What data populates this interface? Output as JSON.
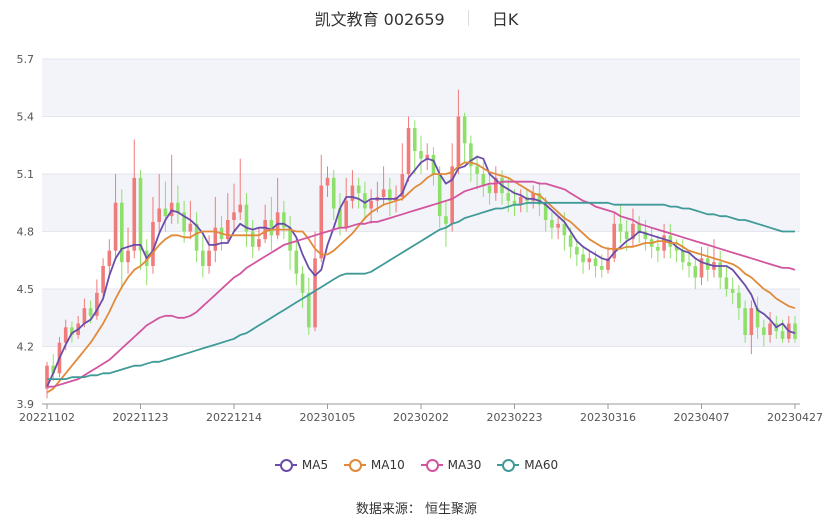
{
  "header": {
    "title": "凯文教育 002659",
    "period": "日K"
  },
  "source": "数据来源： 恒生聚源",
  "colors": {
    "up": "#f07b7b",
    "down": "#8fe06a",
    "ma5": "#6a4caa",
    "ma10": "#e08a3a",
    "ma30": "#d2559f",
    "ma60": "#3f9a98",
    "band": "#f3f4f9",
    "grid": "#e6e6ee",
    "axis": "#999999"
  },
  "chart_data": {
    "type": "candlestick",
    "ylim": [
      3.9,
      5.7
    ],
    "y_ticks": [
      "3.9",
      "4.2",
      "4.5",
      "4.8",
      "5.1",
      "5.4",
      "5.7"
    ],
    "x_tick_labels": [
      "20221102",
      "20221123",
      "20221214",
      "20230105",
      "20230202",
      "20230223",
      "20230316",
      "20230407",
      "20230427"
    ],
    "x_tick_index": [
      0,
      15,
      30,
      45,
      60,
      75,
      90,
      105,
      120
    ],
    "x": [
      0,
      1,
      2,
      3,
      4,
      5,
      6,
      7,
      8,
      9,
      10,
      11,
      12,
      13,
      14,
      15,
      16,
      17,
      18,
      19,
      20,
      21,
      22,
      23,
      24,
      25,
      26,
      27,
      28,
      29,
      30,
      31,
      32,
      33,
      34,
      35,
      36,
      37,
      38,
      39,
      40,
      41,
      42,
      43,
      44,
      45,
      46,
      47,
      48,
      49,
      50,
      51,
      52,
      53,
      54,
      55,
      56,
      57,
      58,
      59,
      60,
      61,
      62,
      63,
      64,
      65,
      66,
      67,
      68,
      69,
      70,
      71,
      72,
      73,
      74,
      75,
      76,
      77,
      78,
      79,
      80,
      81,
      82,
      83,
      84,
      85,
      86,
      87,
      88,
      89,
      90,
      91,
      92,
      93,
      94,
      95,
      96,
      97,
      98,
      99,
      100,
      101,
      102,
      103,
      104,
      105,
      106,
      107,
      108,
      109,
      110,
      111,
      112,
      113,
      114,
      115,
      116,
      117,
      118,
      119,
      120
    ],
    "candles": [
      [
        3.98,
        4.1,
        3.93,
        4.12
      ],
      [
        4.1,
        4.06,
        4.02,
        4.16
      ],
      [
        4.06,
        4.22,
        4.04,
        4.25
      ],
      [
        4.22,
        4.3,
        4.18,
        4.34
      ],
      [
        4.3,
        4.26,
        4.22,
        4.33
      ],
      [
        4.26,
        4.32,
        4.24,
        4.36
      ],
      [
        4.32,
        4.4,
        4.3,
        4.45
      ],
      [
        4.4,
        4.36,
        4.32,
        4.44
      ],
      [
        4.36,
        4.48,
        4.34,
        4.55
      ],
      [
        4.48,
        4.62,
        4.44,
        4.66
      ],
      [
        4.62,
        4.7,
        4.56,
        4.76
      ],
      [
        4.7,
        4.95,
        4.66,
        5.1
      ],
      [
        4.95,
        4.64,
        4.5,
        5.02
      ],
      [
        4.64,
        4.7,
        4.58,
        4.82
      ],
      [
        4.7,
        5.08,
        4.66,
        5.28
      ],
      [
        5.08,
        4.7,
        4.6,
        5.12
      ],
      [
        4.7,
        4.62,
        4.52,
        4.76
      ],
      [
        4.62,
        4.85,
        4.58,
        4.98
      ],
      [
        4.85,
        4.92,
        4.8,
        5.1
      ],
      [
        4.92,
        4.88,
        4.8,
        5.06
      ],
      [
        4.88,
        4.95,
        4.84,
        5.2
      ],
      [
        4.95,
        4.9,
        4.84,
        5.04
      ],
      [
        4.9,
        4.8,
        4.74,
        4.96
      ],
      [
        4.8,
        4.84,
        4.76,
        4.96
      ],
      [
        4.84,
        4.7,
        4.64,
        4.9
      ],
      [
        4.7,
        4.62,
        4.56,
        4.78
      ],
      [
        4.62,
        4.7,
        4.58,
        4.78
      ],
      [
        4.7,
        4.82,
        4.64,
        4.98
      ],
      [
        4.82,
        4.76,
        4.7,
        4.88
      ],
      [
        4.76,
        4.86,
        4.74,
        5.0
      ],
      [
        4.86,
        4.9,
        4.8,
        5.05
      ],
      [
        4.9,
        4.94,
        4.86,
        5.18
      ],
      [
        4.94,
        4.8,
        4.72,
        5.0
      ],
      [
        4.8,
        4.72,
        4.66,
        4.86
      ],
      [
        4.72,
        4.76,
        4.7,
        4.82
      ],
      [
        4.76,
        4.86,
        4.74,
        4.94
      ],
      [
        4.86,
        4.78,
        4.7,
        4.98
      ],
      [
        4.78,
        4.9,
        4.76,
        5.08
      ],
      [
        4.9,
        4.82,
        4.76,
        4.96
      ],
      [
        4.82,
        4.7,
        4.6,
        4.88
      ],
      [
        4.7,
        4.58,
        4.52,
        4.76
      ],
      [
        4.58,
        4.48,
        4.4,
        4.62
      ],
      [
        4.48,
        4.3,
        4.26,
        4.56
      ],
      [
        4.3,
        4.66,
        4.28,
        4.8
      ],
      [
        4.66,
        5.04,
        4.64,
        5.2
      ],
      [
        5.04,
        5.08,
        4.98,
        5.14
      ],
      [
        5.08,
        4.92,
        4.86,
        5.12
      ],
      [
        4.92,
        4.82,
        4.78,
        5.0
      ],
      [
        4.82,
        4.96,
        4.8,
        5.08
      ],
      [
        4.96,
        5.04,
        4.92,
        5.12
      ],
      [
        5.04,
        5.0,
        4.92,
        5.08
      ],
      [
        5.0,
        4.92,
        4.86,
        5.06
      ],
      [
        4.92,
        4.96,
        4.84,
        5.02
      ],
      [
        4.96,
        4.98,
        4.9,
        5.06
      ],
      [
        4.98,
        5.02,
        4.94,
        5.14
      ],
      [
        5.02,
        4.96,
        4.88,
        5.08
      ],
      [
        4.96,
        4.98,
        4.9,
        5.04
      ],
      [
        4.98,
        5.1,
        4.96,
        5.26
      ],
      [
        5.1,
        5.34,
        5.06,
        5.4
      ],
      [
        5.34,
        5.22,
        5.1,
        5.38
      ],
      [
        5.22,
        5.18,
        5.1,
        5.3
      ],
      [
        5.18,
        5.2,
        5.12,
        5.26
      ],
      [
        5.2,
        5.1,
        5.04,
        5.24
      ],
      [
        5.1,
        4.88,
        4.82,
        5.14
      ],
      [
        4.88,
        4.84,
        4.72,
        4.96
      ],
      [
        4.84,
        5.14,
        4.8,
        5.26
      ],
      [
        5.14,
        5.4,
        5.1,
        5.54
      ],
      [
        5.4,
        5.26,
        5.16,
        5.42
      ],
      [
        5.26,
        5.14,
        5.06,
        5.3
      ],
      [
        5.14,
        5.1,
        5.02,
        5.2
      ],
      [
        5.1,
        5.04,
        4.98,
        5.16
      ],
      [
        5.04,
        5.0,
        4.94,
        5.1
      ],
      [
        5.0,
        5.08,
        4.96,
        5.14
      ],
      [
        5.08,
        5.0,
        4.94,
        5.12
      ],
      [
        5.0,
        4.96,
        4.9,
        5.08
      ],
      [
        4.96,
        4.94,
        4.88,
        5.02
      ],
      [
        4.94,
        4.98,
        4.9,
        5.02
      ],
      [
        4.98,
        4.96,
        4.9,
        5.02
      ],
      [
        4.96,
        5.0,
        4.92,
        5.04
      ],
      [
        5.0,
        4.94,
        4.88,
        5.06
      ],
      [
        4.94,
        4.86,
        4.8,
        4.98
      ],
      [
        4.86,
        4.82,
        4.76,
        4.9
      ],
      [
        4.82,
        4.84,
        4.76,
        4.88
      ],
      [
        4.84,
        4.78,
        4.7,
        4.9
      ],
      [
        4.78,
        4.72,
        4.66,
        4.82
      ],
      [
        4.72,
        4.68,
        4.62,
        4.76
      ],
      [
        4.68,
        4.64,
        4.58,
        4.72
      ],
      [
        4.64,
        4.66,
        4.6,
        4.7
      ],
      [
        4.66,
        4.62,
        4.56,
        4.7
      ],
      [
        4.62,
        4.6,
        4.56,
        4.68
      ],
      [
        4.6,
        4.66,
        4.58,
        4.72
      ],
      [
        4.66,
        4.84,
        4.64,
        4.9
      ],
      [
        4.84,
        4.8,
        4.74,
        4.94
      ],
      [
        4.8,
        4.76,
        4.7,
        4.86
      ],
      [
        4.76,
        4.84,
        4.72,
        4.92
      ],
      [
        4.84,
        4.8,
        4.74,
        4.88
      ],
      [
        4.8,
        4.76,
        4.7,
        4.86
      ],
      [
        4.76,
        4.72,
        4.66,
        4.82
      ],
      [
        4.72,
        4.7,
        4.64,
        4.78
      ],
      [
        4.7,
        4.78,
        4.66,
        4.84
      ],
      [
        4.78,
        4.72,
        4.66,
        4.84
      ],
      [
        4.72,
        4.7,
        4.64,
        4.76
      ],
      [
        4.7,
        4.64,
        4.6,
        4.76
      ],
      [
        4.64,
        4.62,
        4.56,
        4.7
      ],
      [
        4.62,
        4.56,
        4.5,
        4.66
      ],
      [
        4.56,
        4.66,
        4.52,
        4.72
      ],
      [
        4.66,
        4.6,
        4.54,
        4.72
      ],
      [
        4.6,
        4.64,
        4.56,
        4.76
      ],
      [
        4.64,
        4.56,
        4.5,
        4.7
      ],
      [
        4.56,
        4.5,
        4.46,
        4.62
      ],
      [
        4.5,
        4.48,
        4.42,
        4.56
      ],
      [
        4.48,
        4.4,
        4.34,
        4.52
      ],
      [
        4.4,
        4.26,
        4.22,
        4.44
      ],
      [
        4.26,
        4.4,
        4.16,
        4.44
      ],
      [
        4.4,
        4.3,
        4.24,
        4.46
      ],
      [
        4.3,
        4.26,
        4.2,
        4.34
      ],
      [
        4.26,
        4.32,
        4.22,
        4.38
      ],
      [
        4.32,
        4.28,
        4.24,
        4.36
      ],
      [
        4.28,
        4.24,
        4.22,
        4.34
      ],
      [
        4.24,
        4.32,
        4.22,
        4.36
      ],
      [
        4.32,
        4.24,
        4.22,
        4.36
      ]
    ],
    "series": [
      {
        "name": "MA5",
        "values": [
          3.99,
          4.06,
          4.14,
          4.21,
          4.27,
          4.29,
          4.32,
          4.34,
          4.39,
          4.45,
          4.57,
          4.66,
          4.71,
          4.72,
          4.73,
          4.73,
          4.66,
          4.7,
          4.79,
          4.86,
          4.91,
          4.9,
          4.88,
          4.86,
          4.83,
          4.79,
          4.73,
          4.73,
          4.74,
          4.74,
          4.8,
          4.84,
          4.82,
          4.81,
          4.82,
          4.82,
          4.81,
          4.84,
          4.84,
          4.82,
          4.77,
          4.68,
          4.61,
          4.57,
          4.6,
          4.73,
          4.82,
          4.92,
          4.98,
          4.98,
          4.97,
          4.95,
          4.97,
          4.97,
          4.97,
          4.97,
          4.97,
          5.0,
          5.08,
          5.12,
          5.16,
          5.18,
          5.17,
          5.1,
          5.05,
          5.07,
          5.13,
          5.14,
          5.17,
          5.19,
          5.18,
          5.1,
          5.07,
          5.04,
          5.02,
          5.0,
          4.99,
          4.97,
          4.97,
          4.96,
          4.94,
          4.91,
          4.88,
          4.85,
          4.8,
          4.75,
          4.72,
          4.7,
          4.68,
          4.66,
          4.65,
          4.69,
          4.72,
          4.75,
          4.77,
          4.8,
          4.79,
          4.78,
          4.77,
          4.76,
          4.75,
          4.72,
          4.7,
          4.69,
          4.66,
          4.64,
          4.63,
          4.62,
          4.62,
          4.62,
          4.6,
          4.56,
          4.52,
          4.47,
          4.39,
          4.37,
          4.34,
          4.3,
          4.32,
          4.28,
          4.27
        ]
      },
      {
        "name": "MA10",
        "values": [
          3.96,
          3.98,
          4.02,
          4.06,
          4.1,
          4.14,
          4.18,
          4.22,
          4.27,
          4.32,
          4.38,
          4.45,
          4.51,
          4.56,
          4.6,
          4.62,
          4.65,
          4.69,
          4.73,
          4.76,
          4.78,
          4.78,
          4.77,
          4.77,
          4.79,
          4.8,
          4.8,
          4.8,
          4.79,
          4.78,
          4.78,
          4.78,
          4.78,
          4.78,
          4.78,
          4.8,
          4.81,
          4.81,
          4.81,
          4.81,
          4.8,
          4.8,
          4.76,
          4.71,
          4.68,
          4.68,
          4.7,
          4.73,
          4.76,
          4.79,
          4.83,
          4.87,
          4.9,
          4.92,
          4.94,
          4.95,
          4.96,
          4.97,
          5.0,
          5.03,
          5.05,
          5.08,
          5.1,
          5.1,
          5.1,
          5.11,
          5.14,
          5.16,
          5.16,
          5.15,
          5.13,
          5.11,
          5.1,
          5.09,
          5.08,
          5.06,
          5.04,
          5.02,
          5.0,
          4.99,
          4.96,
          4.93,
          4.9,
          4.87,
          4.85,
          4.82,
          4.79,
          4.76,
          4.74,
          4.72,
          4.71,
          4.71,
          4.71,
          4.72,
          4.72,
          4.73,
          4.74,
          4.74,
          4.75,
          4.75,
          4.74,
          4.74,
          4.72,
          4.7,
          4.69,
          4.68,
          4.67,
          4.66,
          4.65,
          4.64,
          4.63,
          4.61,
          4.58,
          4.56,
          4.53,
          4.5,
          4.48,
          4.45,
          4.43,
          4.41,
          4.4
        ]
      },
      {
        "name": "MA30",
        "values": [
          3.99,
          3.99,
          4.0,
          4.01,
          4.02,
          4.03,
          4.05,
          4.07,
          4.09,
          4.11,
          4.13,
          4.16,
          4.19,
          4.22,
          4.25,
          4.28,
          4.31,
          4.33,
          4.35,
          4.36,
          4.36,
          4.35,
          4.35,
          4.36,
          4.38,
          4.41,
          4.44,
          4.47,
          4.5,
          4.53,
          4.56,
          4.58,
          4.61,
          4.63,
          4.65,
          4.67,
          4.69,
          4.71,
          4.73,
          4.74,
          4.75,
          4.76,
          4.77,
          4.78,
          4.79,
          4.8,
          4.81,
          4.82,
          4.82,
          4.83,
          4.84,
          4.84,
          4.85,
          4.85,
          4.86,
          4.87,
          4.88,
          4.89,
          4.9,
          4.91,
          4.92,
          4.93,
          4.94,
          4.95,
          4.96,
          4.97,
          4.99,
          5.01,
          5.02,
          5.03,
          5.04,
          5.05,
          5.05,
          5.06,
          5.06,
          5.06,
          5.06,
          5.06,
          5.06,
          5.05,
          5.05,
          5.04,
          5.03,
          5.02,
          5.0,
          4.98,
          4.96,
          4.95,
          4.93,
          4.92,
          4.91,
          4.9,
          4.88,
          4.87,
          4.86,
          4.84,
          4.83,
          4.82,
          4.81,
          4.8,
          4.79,
          4.78,
          4.77,
          4.76,
          4.75,
          4.74,
          4.73,
          4.72,
          4.71,
          4.7,
          4.69,
          4.68,
          4.67,
          4.66,
          4.65,
          4.64,
          4.63,
          4.62,
          4.61,
          4.61,
          4.6
        ]
      },
      {
        "name": "MA60",
        "values": [
          4.03,
          4.03,
          4.03,
          4.03,
          4.04,
          4.04,
          4.04,
          4.05,
          4.05,
          4.06,
          4.06,
          4.07,
          4.08,
          4.09,
          4.1,
          4.1,
          4.11,
          4.12,
          4.12,
          4.13,
          4.14,
          4.15,
          4.16,
          4.17,
          4.18,
          4.19,
          4.2,
          4.21,
          4.22,
          4.23,
          4.24,
          4.26,
          4.27,
          4.29,
          4.31,
          4.33,
          4.35,
          4.37,
          4.39,
          4.41,
          4.43,
          4.45,
          4.47,
          4.49,
          4.51,
          4.53,
          4.55,
          4.57,
          4.58,
          4.58,
          4.58,
          4.58,
          4.59,
          4.61,
          4.63,
          4.65,
          4.67,
          4.69,
          4.71,
          4.73,
          4.75,
          4.77,
          4.79,
          4.81,
          4.82,
          4.84,
          4.85,
          4.87,
          4.88,
          4.89,
          4.9,
          4.91,
          4.92,
          4.92,
          4.93,
          4.94,
          4.94,
          4.95,
          4.95,
          4.95,
          4.95,
          4.95,
          4.95,
          4.95,
          4.95,
          4.95,
          4.95,
          4.95,
          4.95,
          4.95,
          4.95,
          4.94,
          4.94,
          4.94,
          4.94,
          4.94,
          4.94,
          4.94,
          4.94,
          4.94,
          4.93,
          4.93,
          4.92,
          4.92,
          4.91,
          4.9,
          4.89,
          4.89,
          4.88,
          4.88,
          4.87,
          4.86,
          4.86,
          4.85,
          4.84,
          4.83,
          4.82,
          4.81,
          4.8,
          4.8,
          4.8
        ]
      }
    ]
  }
}
